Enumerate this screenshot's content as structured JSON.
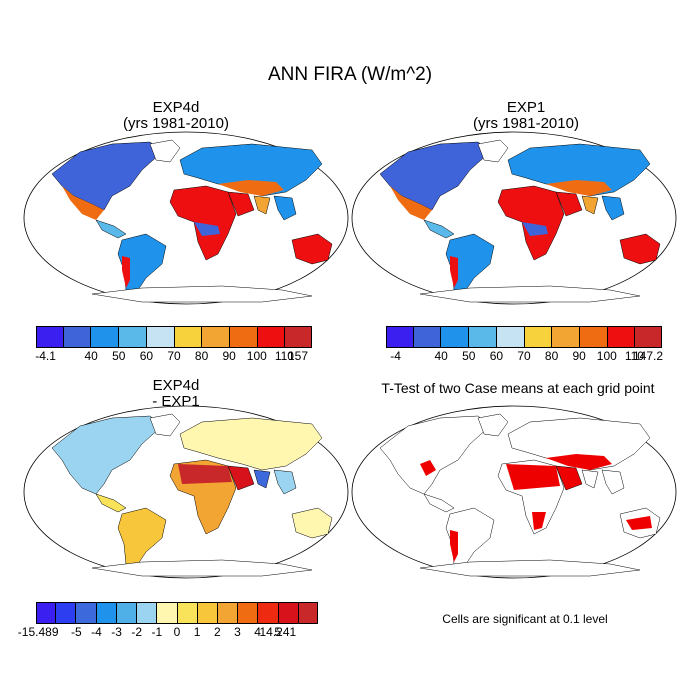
{
  "figure": {
    "title": "ANN FIRA (W/m^2)"
  },
  "panels": [
    {
      "id": "exp4d",
      "title_line1": "EXP4d",
      "title_line2": "(yrs 1981-2010)",
      "colorbar": {
        "labels": [
          "-4.1",
          "40",
          "50",
          "60",
          "70",
          "80",
          "90",
          "100",
          "110",
          "157"
        ],
        "colors": [
          "#3a1ff0",
          "#3f63d9",
          "#1f93eb",
          "#5ab9e8",
          "#c5e3f2",
          "#f7d23c",
          "#f3a533",
          "#ef6c12",
          "#ee1010",
          "#c8282a"
        ]
      }
    },
    {
      "id": "exp1",
      "title_line1": "EXP1",
      "title_line2": "(yrs 1981-2010)",
      "colorbar": {
        "labels": [
          "-4",
          "40",
          "50",
          "60",
          "70",
          "80",
          "90",
          "100",
          "110",
          "147.2"
        ],
        "colors": [
          "#3a1ff0",
          "#3f63d9",
          "#1f93eb",
          "#5ab9e8",
          "#c5e3f2",
          "#f7d23c",
          "#f3a533",
          "#ef6c12",
          "#ee1010",
          "#c8282a"
        ]
      }
    },
    {
      "id": "diff",
      "title_line1": "EXP4d",
      "title_line2": "- EXP1",
      "colorbar": {
        "labels": [
          "-15.489",
          "-5",
          "-4",
          "-3",
          "-2",
          "-1",
          "0",
          "1",
          "2",
          "3",
          "4",
          "5",
          "14.241"
        ],
        "colors": [
          "#3a1ff0",
          "#2d3ef0",
          "#3c69dc",
          "#1f93eb",
          "#4fb0e8",
          "#9ad4f0",
          "#fff7b0",
          "#f8e35a",
          "#f7c63a",
          "#f3a533",
          "#ef6c12",
          "#ee2a10",
          "#d8121a",
          "#c8282a"
        ]
      }
    },
    {
      "id": "ttest",
      "title": "T-Test of two Case means at each grid point",
      "note": "Cells are significant at 0.1 level"
    }
  ],
  "colors": {
    "ocean": "#ffffff",
    "land_outline": "#000000",
    "significant": "#ee0000"
  }
}
